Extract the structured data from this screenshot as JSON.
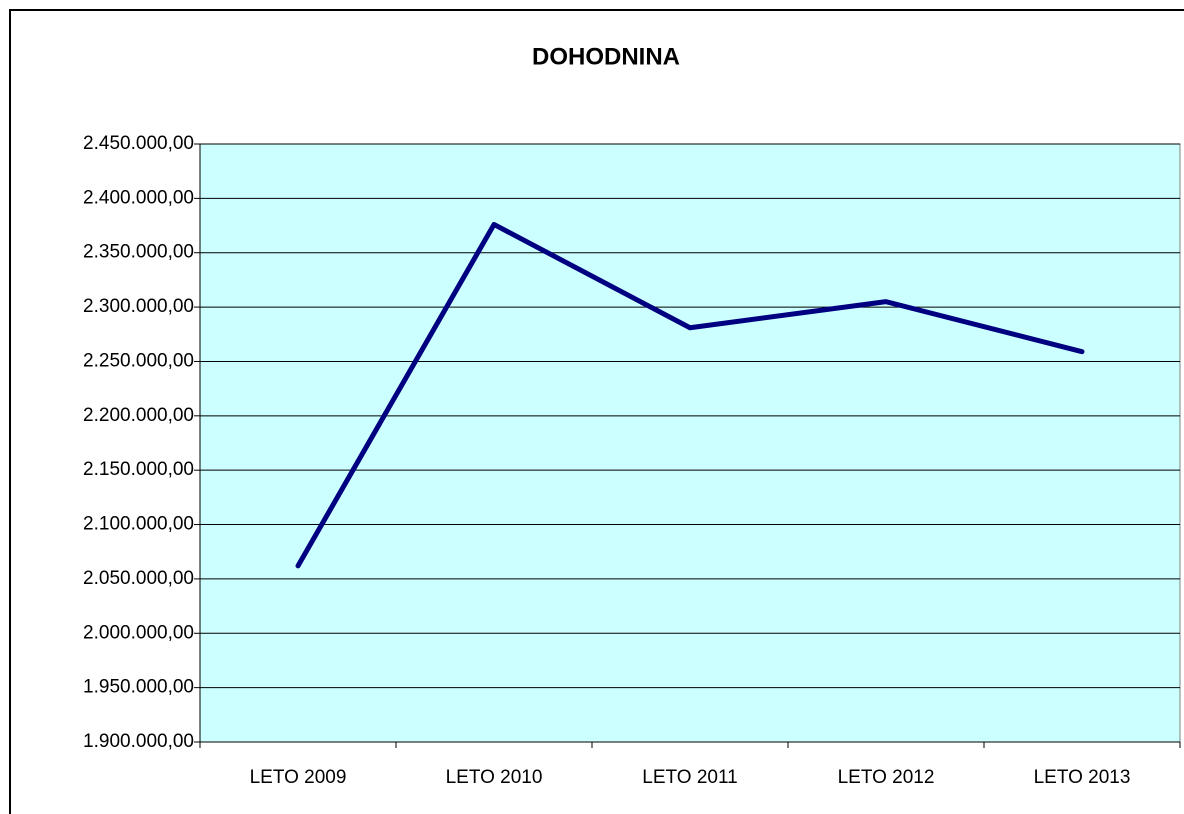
{
  "chart_data": {
    "type": "line",
    "title": "DOHODNINA",
    "categories": [
      "LETO 2009",
      "LETO 2010",
      "LETO 2011",
      "LETO 2012",
      "LETO 2013"
    ],
    "series": [
      {
        "name": "DOHODNINA",
        "color": "#000080",
        "values": [
          2062000,
          2376000,
          2281000,
          2305000,
          2259000
        ]
      }
    ],
    "ylim": [
      1900000,
      2450000
    ],
    "yticks": [
      {
        "value": 1900000,
        "label": "1.900.000,00"
      },
      {
        "value": 1950000,
        "label": "1.950.000,00"
      },
      {
        "value": 2000000,
        "label": "2.000.000,00"
      },
      {
        "value": 2050000,
        "label": "2.050.000,00"
      },
      {
        "value": 2100000,
        "label": "2.100.000,00"
      },
      {
        "value": 2150000,
        "label": "2.150.000,00"
      },
      {
        "value": 2200000,
        "label": "2.200.000,00"
      },
      {
        "value": 2250000,
        "label": "2.250.000,00"
      },
      {
        "value": 2300000,
        "label": "2.300.000,00"
      },
      {
        "value": 2350000,
        "label": "2.350.000,00"
      },
      {
        "value": 2400000,
        "label": "2.400.000,00"
      },
      {
        "value": 2450000,
        "label": "2.450.000,00"
      }
    ],
    "grid": true,
    "plot_background": "#ccffff"
  }
}
